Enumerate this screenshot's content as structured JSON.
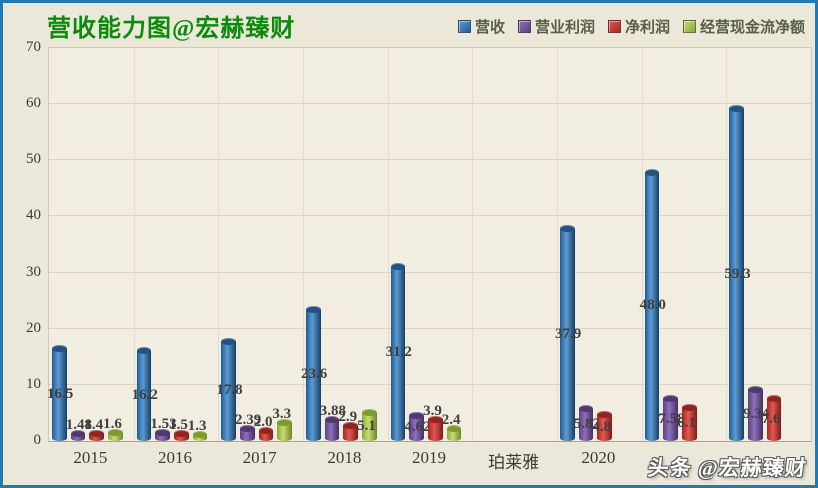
{
  "title": "营收能力图@宏赫臻财",
  "watermark": "头条 @宏赫臻财",
  "legend": [
    {
      "label": "营收",
      "color": "#3a76b4"
    },
    {
      "label": "营业利润",
      "color": "#6c4f99"
    },
    {
      "label": "净利润",
      "color": "#bb3430"
    },
    {
      "label": "经营现金流净额",
      "color": "#a3bf4a"
    }
  ],
  "chart_data": {
    "type": "bar",
    "title": "营收能力图@宏赫臻财",
    "categories": [
      "2015",
      "2016",
      "2017",
      "2018",
      "2019",
      "珀莱雅",
      "2020",
      "",
      ""
    ],
    "series": [
      {
        "name": "营收",
        "light": "#5d9bd5",
        "dark": "#1f5c95",
        "edge": "#173e63",
        "cap": "#24517f",
        "values": [
          "16.5",
          "16.2",
          "17.8",
          "23.6",
          "31.2",
          null,
          "37.9",
          "48.0",
          "59.3"
        ]
      },
      {
        "name": "营业利润",
        "light": "#8e6fbb",
        "dark": "#5b4180",
        "edge": "#432f60",
        "cap": "#4e3a70",
        "values": [
          "1.48",
          "1.53",
          "2.39",
          "3.88",
          "4.62",
          null,
          "5.82",
          "7.58",
          "9.34"
        ]
      },
      {
        "name": "净利润",
        "light": "#e15852",
        "dark": "#a52622",
        "edge": "#7e1b18",
        "cap": "#93241f",
        "values": [
          "1.4",
          "1.5",
          "2.0",
          "2.9",
          "3.9",
          null,
          "4.8",
          "6.1",
          "7.6"
        ]
      },
      {
        "name": "经营现金流净额",
        "light": "#c7dd6e",
        "dark": "#8aa838",
        "edge": "#6d8527",
        "cap": "#7d9a2e",
        "values": [
          "1.6",
          "1.3",
          "3.3",
          "5.1",
          "2.4",
          null,
          null,
          null,
          null
        ]
      }
    ],
    "ylim": [
      0,
      70
    ],
    "yticks": [
      0,
      10,
      20,
      30,
      40,
      50,
      60,
      70
    ],
    "grid": "horizontal and vertical category gridlines",
    "legend_position": "top-right"
  }
}
